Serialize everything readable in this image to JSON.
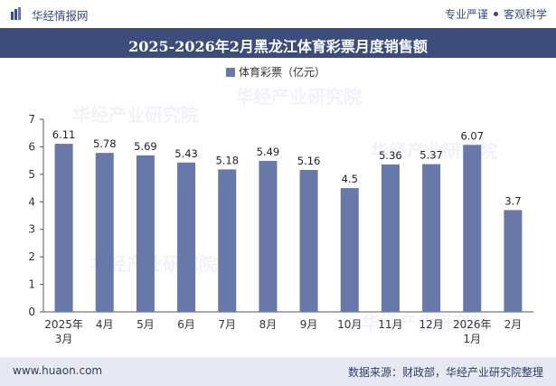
{
  "header": {
    "brand": "华经情报网",
    "slogan_left": "专业严谨",
    "slogan_right": "客观科学",
    "logo_icon": "bar-logo-icon"
  },
  "chart_data": {
    "type": "bar",
    "title": "2025-2026年2月黑龙江体育彩票月度销售额",
    "legend_label": "体育彩票（亿元）",
    "legend_position": "top-center",
    "categories": [
      "2025年3月",
      "4月",
      "5月",
      "6月",
      "7月",
      "8月",
      "9月",
      "10月",
      "11月",
      "12月",
      "2026年1月",
      "2月"
    ],
    "series": [
      {
        "name": "体育彩票（亿元）",
        "values": [
          6.11,
          5.78,
          5.69,
          5.43,
          5.18,
          5.49,
          5.16,
          4.5,
          5.36,
          5.37,
          6.07,
          3.7
        ]
      }
    ],
    "data_labels": [
      "6.11",
      "5.78",
      "5.69",
      "5.43",
      "5.18",
      "5.49",
      "5.16",
      "4.5",
      "5.36",
      "5.37",
      "6.07",
      "3.7"
    ],
    "ylim": [
      0,
      7
    ],
    "yticks": [
      0,
      1,
      2,
      3,
      4,
      5,
      6,
      7
    ],
    "grid": false,
    "bar_color": "#6878a8"
  },
  "watermark": "华经产业研究院",
  "footer": {
    "website": "www.huaon.com",
    "source": "数据来源：财政部，华经产业研究院整理"
  },
  "colors": {
    "title_bg": "#3c4c7b",
    "footer_bg": "#e6e9f2",
    "text_dark": "#2e3c66"
  }
}
